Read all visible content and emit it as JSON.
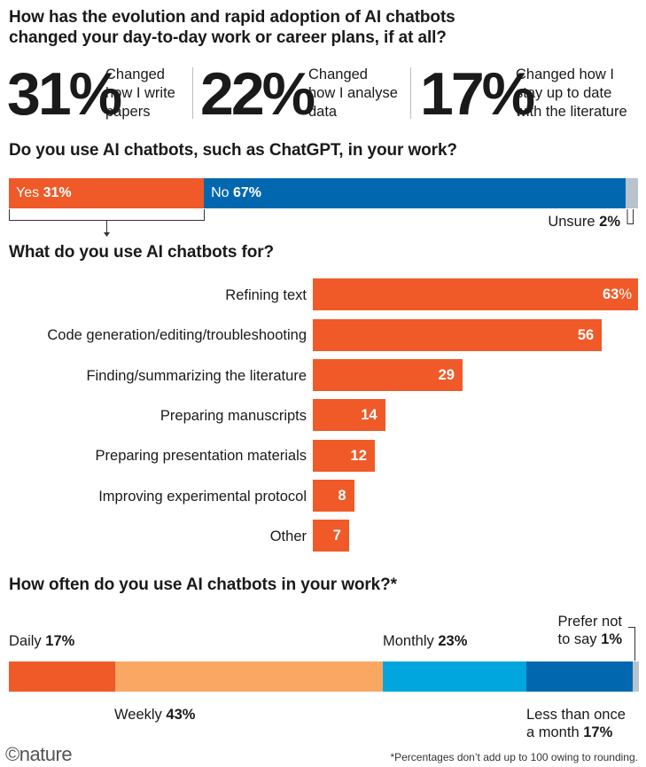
{
  "header": {
    "question1_line1": "How has the evolution and rapid adoption of AI chatbots",
    "question1_line2": "changed your day-to-day work or career plans, if at all?",
    "stats": [
      {
        "value": "31%",
        "desc_line1": "Changed",
        "desc_line2": "how I write",
        "desc_line3": "papers"
      },
      {
        "value": "22%",
        "desc_line1": "Changed",
        "desc_line2": "how I analyse",
        "desc_line3": "data"
      },
      {
        "value": "17%",
        "desc_line1": "Changed how I",
        "desc_line2": "stay up to date",
        "desc_line3": "with the literature"
      }
    ]
  },
  "colors": {
    "orange": "#f05a28",
    "light_orange": "#fba764",
    "blue": "#0168b0",
    "light_blue": "#00a6dd",
    "grey": "#b9c3cd"
  },
  "chart_data": [
    {
      "type": "bar",
      "orientation": "stacked-horizontal",
      "title": "Do you use AI chatbots, such as ChatGPT, in your work?",
      "categories": [
        "Yes",
        "No",
        "Unsure"
      ],
      "values": [
        31,
        67,
        2
      ],
      "value_labels": [
        "31%",
        "67%",
        "2%"
      ]
    },
    {
      "type": "bar",
      "orientation": "horizontal",
      "title": "What do you use AI chatbots for?",
      "categories": [
        "Refining text",
        "Code generation/editing/troubleshooting",
        "Finding/summarizing the literature",
        "Preparing manuscripts",
        "Preparing presentation materials",
        "Improving experimental protocol",
        "Other"
      ],
      "values": [
        63,
        56,
        29,
        14,
        12,
        8,
        7
      ],
      "value_labels": [
        "63",
        "56",
        "29",
        "14",
        "12",
        "8",
        "7"
      ],
      "first_value_suffix": "%"
    },
    {
      "type": "bar",
      "orientation": "stacked-horizontal",
      "title": "How often do you use AI chatbots in your work?*",
      "categories": [
        "Daily",
        "Weekly",
        "Monthly",
        "Less than once a month",
        "Prefer not to say"
      ],
      "values": [
        17,
        43,
        23,
        17,
        1
      ],
      "value_labels": [
        "17%",
        "43%",
        "23%",
        "17%",
        "1%"
      ],
      "label_lines": {
        "less_line1": "Less than once",
        "less_line2": "a month",
        "prefer_line1": "Prefer not",
        "prefer_line2": "to say"
      }
    }
  ],
  "footer": {
    "logo": "©nature",
    "note": "*Percentages don’t add up to 100 owing to rounding."
  }
}
